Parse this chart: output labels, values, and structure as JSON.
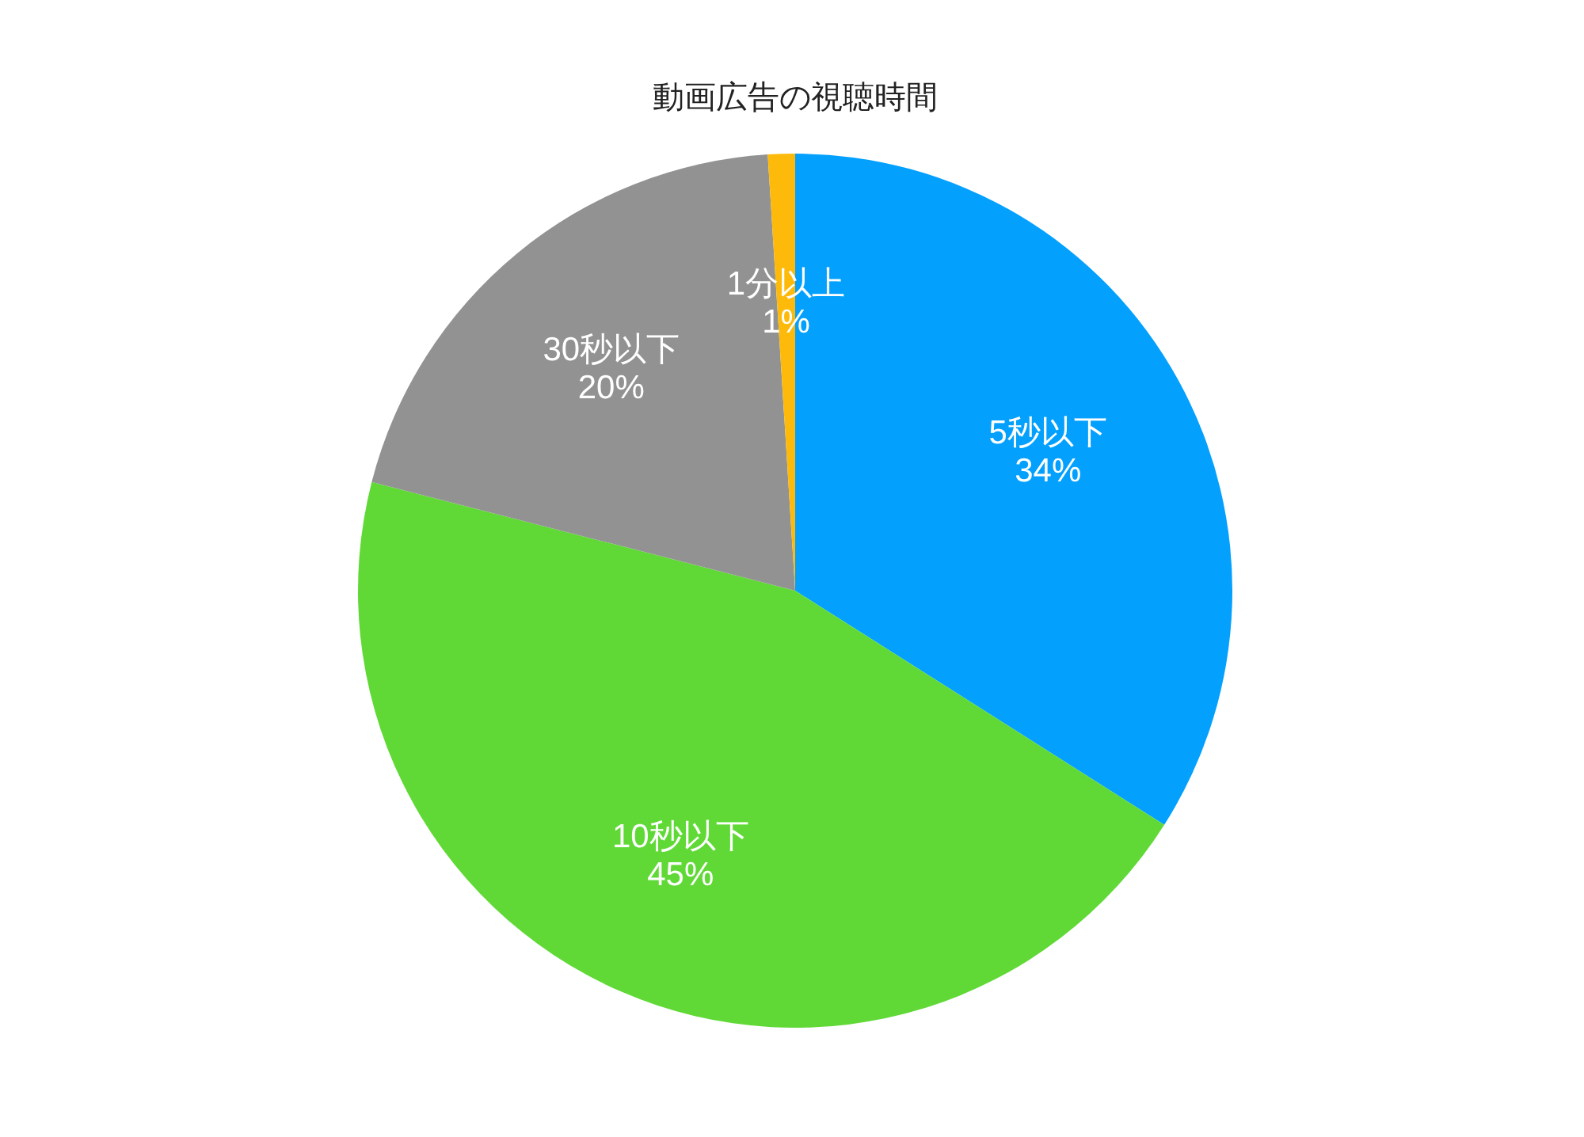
{
  "chart_data": {
    "type": "pie",
    "title": "動画広告の視聴時間",
    "categories": [
      "5秒以下",
      "10秒以下",
      "30秒以下",
      "1分以上"
    ],
    "values": [
      34,
      45,
      20,
      1
    ],
    "colors": [
      "#03a0fe",
      "#60d937",
      "#929292",
      "#fdba0b"
    ],
    "value_labels": [
      "34%",
      "45%",
      "20%",
      "1%"
    ]
  }
}
